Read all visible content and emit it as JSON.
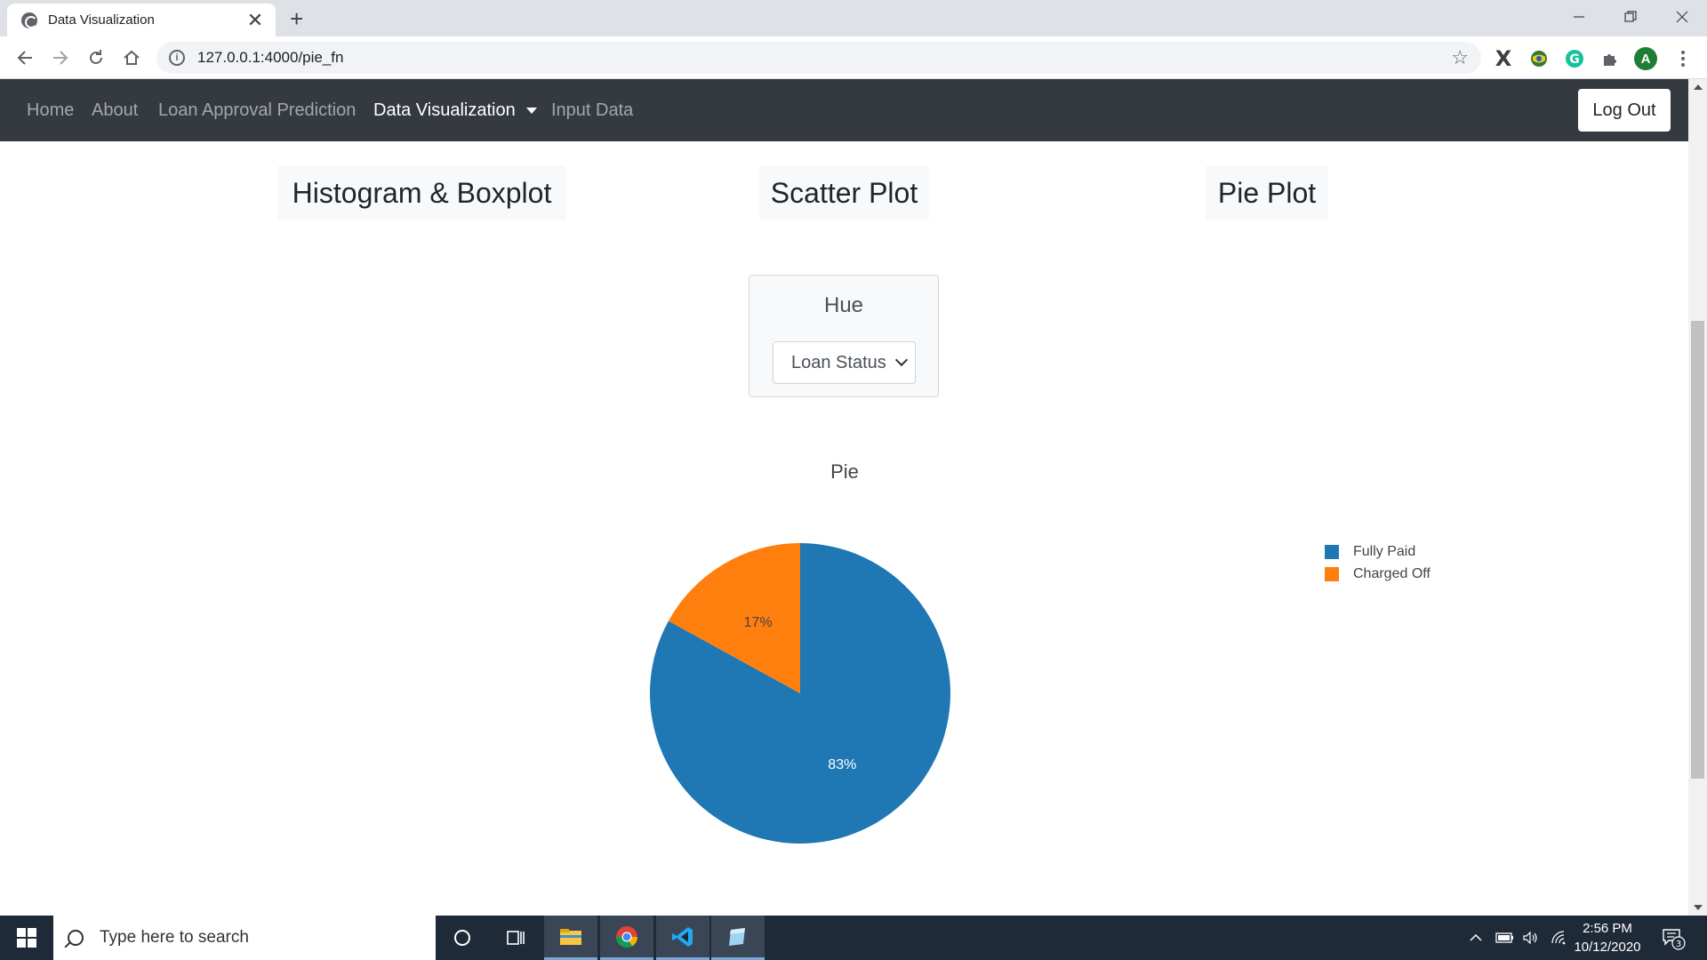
{
  "browser": {
    "tab_title": "Data Visualization",
    "tab_close": "✕",
    "new_tab": "+",
    "url": "127.0.0.1:4000/pie_fn",
    "profile_initial": "A"
  },
  "navbar": {
    "links": [
      "Home",
      "About",
      "Loan Approval Prediction",
      "Data Visualization",
      "Input Data"
    ],
    "active": "Data Visualization",
    "logout_label": "Log Out"
  },
  "plot_tabs": [
    "Histogram & Boxplot",
    "Scatter Plot",
    "Pie Plot"
  ],
  "hue": {
    "title": "Hue",
    "selected": "Loan Status"
  },
  "chart_data": {
    "type": "pie",
    "title": "Pie",
    "labels": [
      "Fully Paid",
      "Charged Off"
    ],
    "values": [
      83,
      17
    ],
    "text_labels": [
      "83%",
      "17%"
    ],
    "colors": [
      "#1f77b4",
      "#ff7f0e"
    ],
    "legend_position": "right"
  },
  "taskbar": {
    "search_placeholder": "Type here to search",
    "time": "2:56 PM",
    "date": "10/12/2020",
    "notification_count": "3"
  }
}
